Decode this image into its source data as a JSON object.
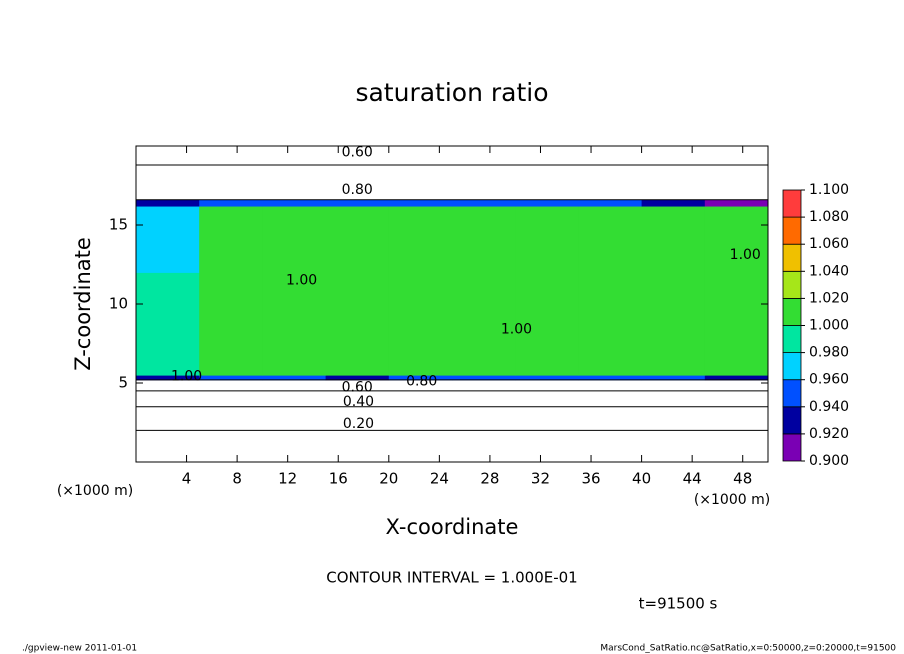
{
  "chart_data": {
    "type": "contour",
    "title": "saturation ratio",
    "x_label": "X-coordinate",
    "y_label": "Z-coordinate",
    "x_unit": "(×1000 m)",
    "y_unit": "(×1000 m)",
    "xlim": [
      0,
      50
    ],
    "ylim": [
      0,
      20
    ],
    "xticks": [
      4,
      8,
      12,
      16,
      20,
      24,
      28,
      32,
      36,
      40,
      44,
      48
    ],
    "yticks": [
      5,
      10,
      15
    ],
    "field": {
      "x": [
        0,
        5,
        10,
        15,
        20,
        25,
        30,
        35,
        40,
        45,
        50
      ],
      "z": [
        0,
        2,
        3.5,
        4.5,
        5.2,
        5.5,
        12,
        16.2,
        16.6,
        18.8,
        20
      ],
      "values": [
        [
          0.15,
          0.15,
          0.15,
          0.15,
          0.15,
          0.15,
          0.15,
          0.15,
          0.15,
          0.15
        ],
        [
          0.3,
          0.3,
          0.3,
          0.3,
          0.3,
          0.3,
          0.3,
          0.3,
          0.3,
          0.3
        ],
        [
          0.45,
          0.45,
          0.45,
          0.45,
          0.45,
          0.45,
          0.45,
          0.45,
          0.45,
          0.45
        ],
        [
          0.65,
          0.65,
          0.65,
          0.65,
          0.65,
          0.65,
          0.65,
          0.65,
          0.65,
          0.65
        ],
        [
          0.93,
          0.95,
          0.94,
          0.93,
          0.95,
          0.95,
          0.94,
          0.95,
          0.94,
          0.93
        ],
        [
          0.99,
          1.0,
          1.0,
          1.0,
          1.0,
          1.0,
          1.0,
          1.0,
          1.0,
          1.0
        ],
        [
          0.97,
          1.0,
          1.0,
          1.0,
          1.0,
          1.0,
          1.0,
          1.0,
          1.0,
          1.0
        ],
        [
          0.93,
          0.94,
          0.95,
          0.95,
          0.95,
          0.95,
          0.95,
          0.94,
          0.93,
          0.91
        ],
        [
          0.8,
          0.8,
          0.8,
          0.8,
          0.8,
          0.8,
          0.8,
          0.8,
          0.8,
          0.8
        ],
        [
          0.6,
          0.6,
          0.6,
          0.6,
          0.6,
          0.6,
          0.6,
          0.6,
          0.6,
          0.6
        ]
      ]
    },
    "levels": [
      {
        "value": 0.9,
        "label": "0.900"
      },
      {
        "value": 0.92,
        "label": "0.920"
      },
      {
        "value": 0.94,
        "label": "0.940"
      },
      {
        "value": 0.96,
        "label": "0.960"
      },
      {
        "value": 0.98,
        "label": "0.980"
      },
      {
        "value": 1.0,
        "label": "1.000"
      },
      {
        "value": 1.02,
        "label": "1.020"
      },
      {
        "value": 1.04,
        "label": "1.040"
      },
      {
        "value": 1.06,
        "label": "1.060"
      },
      {
        "value": 1.08,
        "label": "1.080"
      },
      {
        "value": 1.1,
        "label": "1.100"
      }
    ],
    "colors": [
      "#7a00b4",
      "#0000a0",
      "#0050ff",
      "#00d2ff",
      "#00e6a0",
      "#33dd33",
      "#a6e619",
      "#f0c000",
      "#ff6a00",
      "#ff3c3c"
    ],
    "contour_labels": [
      {
        "value": 0.6,
        "label": "0.60",
        "x": 17.5,
        "z": 19.6
      },
      {
        "value": 0.8,
        "label": "0.80",
        "x": 17.5,
        "z": 17.2
      },
      {
        "value": 1.0,
        "label": "1.00",
        "x": 4,
        "z": 5.4
      },
      {
        "value": 1.0,
        "label": "1.00",
        "x": 13.1,
        "z": 11.5
      },
      {
        "value": 0.6,
        "label": "0.60",
        "x": 17.5,
        "z": 4.7
      },
      {
        "value": 0.8,
        "label": "0.80",
        "x": 22.6,
        "z": 5.1
      },
      {
        "value": 0.4,
        "label": "0.40",
        "x": 17.6,
        "z": 3.8
      },
      {
        "value": 0.2,
        "label": "0.20",
        "x": 17.6,
        "z": 2.4
      },
      {
        "value": 1.0,
        "label": "1.00",
        "x": 30.1,
        "z": 8.4
      },
      {
        "value": 1.0,
        "label": "1.00",
        "x": 48.2,
        "z": 13.1
      }
    ],
    "contour_interval": "CONTOUR INTERVAL = 1.000E-01",
    "time": "t=91500 s",
    "footer_left": "./gpview-new   2011-01-01",
    "footer_right": "MarsCond_SatRatio.nc@SatRatio,x=0:50000,z=0:20000,t=91500"
  }
}
